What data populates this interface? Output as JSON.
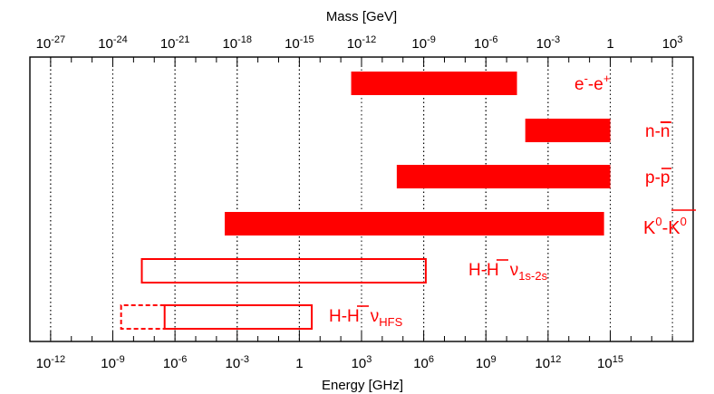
{
  "chart_data": {
    "type": "range-bar",
    "top_axis": {
      "label": "Mass [GeV]",
      "scale": "log",
      "range_exponents": [
        -28,
        4
      ],
      "tick_exponents": [
        -27,
        -24,
        -21,
        -18,
        -15,
        -12,
        -9,
        -6,
        -3,
        0,
        3
      ]
    },
    "bottom_axis": {
      "label": "Energy [GHz]",
      "scale": "log",
      "range_exponents": [
        -13,
        19
      ],
      "tick_exponents": [
        -12,
        -9,
        -6,
        -3,
        0,
        3,
        6,
        9,
        12,
        15
      ]
    },
    "grid": "vertical dotted",
    "color": "#ff0000",
    "bars": [
      {
        "label": "e",
        "label_sup1": "-",
        "label_mid": "-e",
        "label_sup2": "+",
        "mass_exp_from": -12.5,
        "mass_exp_to": -4.5,
        "style": "filled"
      },
      {
        "label": "n-n",
        "overline_tail": "n",
        "mass_exp_from": -4.1,
        "mass_exp_to": 0.0,
        "style": "filled"
      },
      {
        "label": "p-p",
        "overline_tail": "p",
        "mass_exp_from": -10.3,
        "mass_exp_to": 0.0,
        "style": "filled"
      },
      {
        "label": "K0-K0",
        "mass_exp_from": -18.6,
        "mass_exp_to": -0.3,
        "style": "filled"
      },
      {
        "label": "H-H",
        "sub": "1s-2s",
        "mass_exp_from": -22.6,
        "mass_exp_to": -8.9,
        "style": "outline"
      },
      {
        "label": "H-H",
        "sub": "HFS",
        "mass_exp_from": -21.5,
        "mass_exp_to": -14.4,
        "style": "outline",
        "dashed_extension_from": -23.6
      }
    ]
  },
  "texts": {
    "top_title": "Mass [GeV]",
    "bottom_title": "Energy [GHz]",
    "nu": "ν"
  }
}
